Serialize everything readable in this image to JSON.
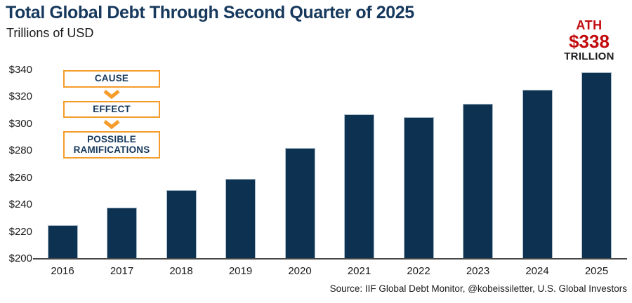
{
  "header": {
    "title": "Total Global Debt Through Second Quarter of 2025",
    "subtitle": "Trillions of USD"
  },
  "annotation": {
    "ath_label": "ATH",
    "ath_value": "$338",
    "ath_unit": "TRILLION"
  },
  "flow": {
    "items": [
      "CAUSE",
      "EFFECT",
      "POSSIBLE RAMIFICATIONS"
    ]
  },
  "chart_data": {
    "type": "bar",
    "title": "Total Global Debt Through Second Quarter of 2025",
    "ylabel": "Trillions of USD",
    "xlabel": "",
    "categories": [
      "2016",
      "2017",
      "2018",
      "2019",
      "2020",
      "2021",
      "2022",
      "2023",
      "2024",
      "2025"
    ],
    "values": [
      225,
      238,
      251,
      259,
      282,
      307,
      305,
      315,
      325,
      338
    ],
    "ylim": [
      200,
      345
    ],
    "yticks": [
      340,
      320,
      300,
      280,
      260,
      240,
      220,
      200
    ],
    "ytick_prefix": "$",
    "grid": false,
    "legend": false,
    "annotation_text": "ATH $338 TRILLION (2025 bar)"
  },
  "footer": {
    "source": "Source: IIF Global Debt Monitor, @kobeissiletter, U.S. Global Investors"
  },
  "colors": {
    "bar_navy": "#0d3150",
    "bar_edge": "#a9bcc9",
    "title_navy": "#17395d",
    "orange": "#f59c2a",
    "red": "#c20a0d",
    "axis_gray": "#484848",
    "text_black": "#1a1a1a"
  }
}
